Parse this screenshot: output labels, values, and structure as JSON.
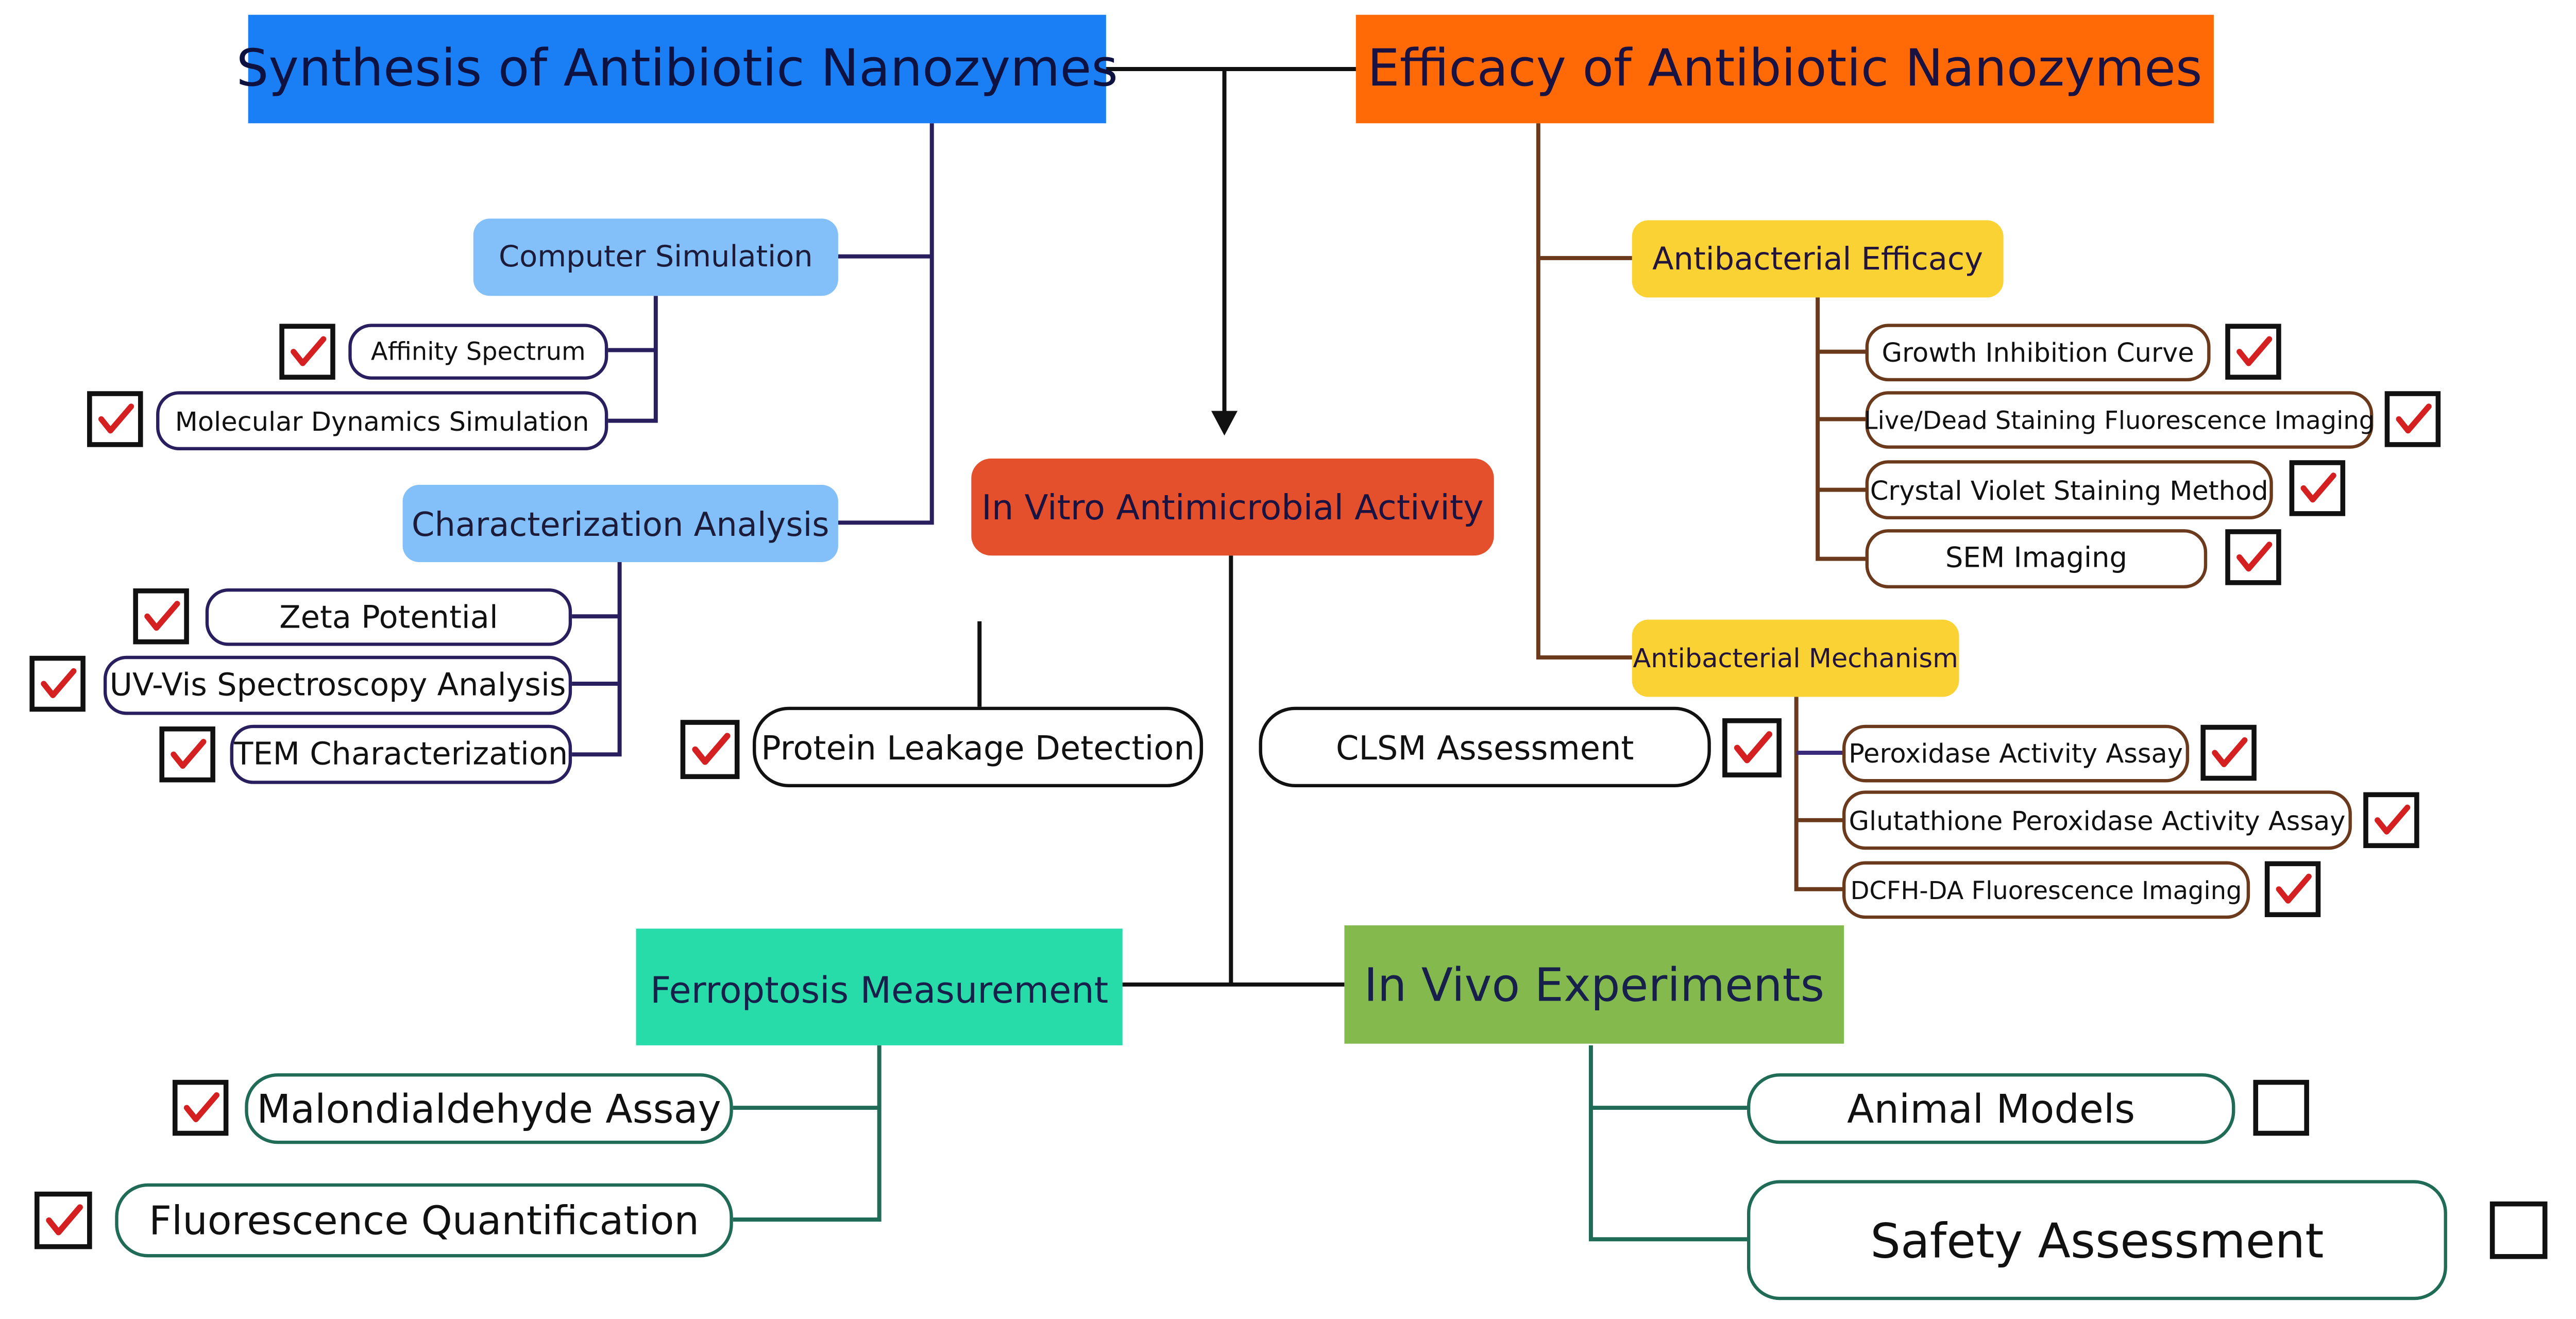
{
  "colors": {
    "synthesis": "#1a7ef5",
    "efficacy": "#ff6a06",
    "invitro": "#e44f2c",
    "ferroptosis": "#28dcaa",
    "invivo": "#84b94e",
    "blue_sub": "#83bff8",
    "yellow_sub": "#fbd233",
    "navy_line": "#2a1f5e",
    "brown_line": "#6b3a1c",
    "green_line": "#1f6b55",
    "check_mark": "#d42020"
  },
  "synthesis": {
    "title": "Synthesis of Antibiotic Nanozymes",
    "computer_simulation": {
      "label": "Computer Simulation",
      "items": [
        {
          "label": "Affinity Spectrum",
          "checked": true
        },
        {
          "label": "Molecular Dynamics Simulation",
          "checked": true
        }
      ]
    },
    "characterization": {
      "label": "Characterization Analysis",
      "items": [
        {
          "label": "Zeta Potential",
          "checked": true
        },
        {
          "label": "UV-Vis Spectroscopy Analysis",
          "checked": true
        },
        {
          "label": "TEM Characterization",
          "checked": true
        }
      ]
    }
  },
  "efficacy": {
    "title": "Efficacy of Antibiotic Nanozymes",
    "antibacterial_efficacy": {
      "label": "Antibacterial Efficacy",
      "items": [
        {
          "label": "Growth Inhibition Curve",
          "checked": true
        },
        {
          "label": "Live/Dead Staining Fluorescence Imaging",
          "checked": true
        },
        {
          "label": "Crystal Violet Staining Method",
          "checked": true
        },
        {
          "label": "SEM Imaging",
          "checked": true
        }
      ]
    },
    "antibacterial_mechanism": {
      "label": "Antibacterial Mechanism",
      "items": [
        {
          "label": "Peroxidase Activity Assay",
          "checked": true
        },
        {
          "label": "Glutathione Peroxidase Activity Assay",
          "checked": true
        },
        {
          "label": "DCFH-DA Fluorescence Imaging",
          "checked": true
        }
      ]
    }
  },
  "in_vitro": {
    "title": "In Vitro Antimicrobial Activity",
    "items": [
      {
        "label": "Protein Leakage Detection",
        "checked": true
      },
      {
        "label": "CLSM Assessment",
        "checked": true
      }
    ]
  },
  "ferroptosis": {
    "title": "Ferroptosis Measurement",
    "items": [
      {
        "label": "Malondialdehyde Assay",
        "checked": true
      },
      {
        "label": "Fluorescence Quantification",
        "checked": true
      }
    ]
  },
  "in_vivo": {
    "title": "In Vivo Experiments",
    "items": [
      {
        "label": "Animal Models",
        "checked": false
      },
      {
        "label": "Safety Assessment",
        "checked": false
      }
    ]
  }
}
